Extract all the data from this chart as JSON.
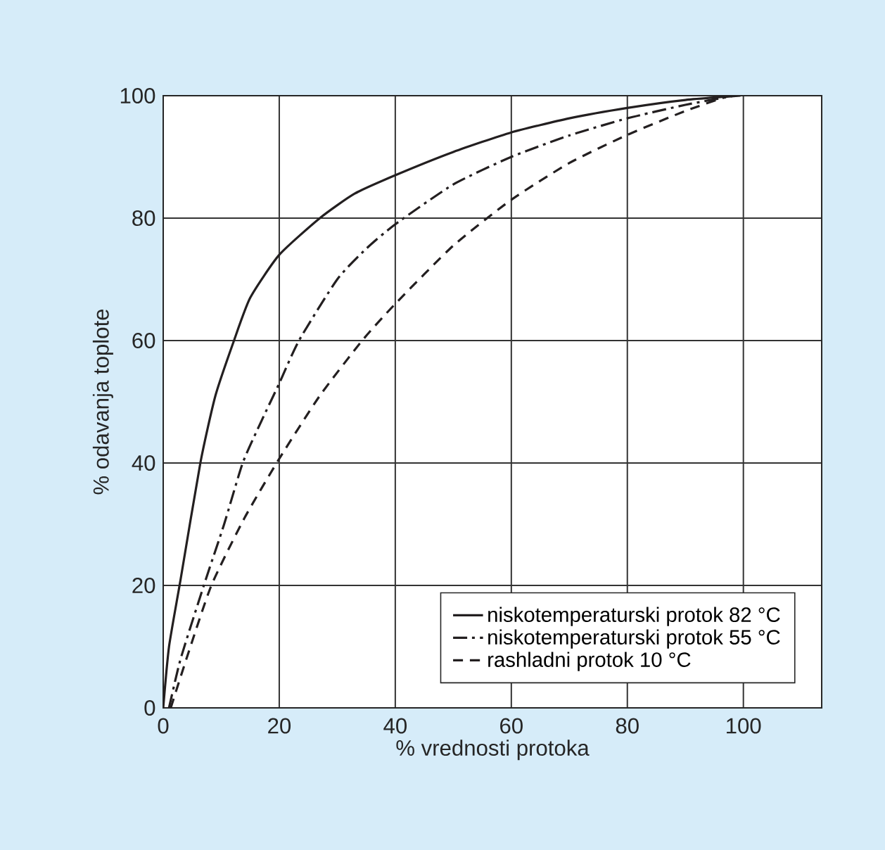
{
  "chart_data": {
    "type": "line",
    "xlabel": "% vrednosti protoka",
    "ylabel": "% odavanja toplote",
    "xlim": [
      0,
      113.5
    ],
    "ylim": [
      0,
      100
    ],
    "xticks": [
      0,
      20,
      40,
      60,
      80,
      100
    ],
    "yticks": [
      0,
      20,
      40,
      60,
      80,
      100
    ],
    "grid": true,
    "legend": "bottom right",
    "series": [
      {
        "name": "niskotemperaturski protok 82 °C",
        "color": "#231f20",
        "line_style": "solid",
        "x": [
          0,
          1,
          3,
          6.4,
          9,
          12.2,
          15,
          20,
          27,
          33,
          40,
          50,
          60,
          70,
          80,
          90,
          99.5
        ],
        "values": [
          0,
          10,
          21,
          40,
          51,
          60,
          67,
          74,
          80,
          84,
          87,
          90.8,
          94,
          96.3,
          98,
          99.3,
          100
        ]
      },
      {
        "name": "niskotemperaturski protok 55 °C",
        "color": "#231f20",
        "line_style": "dashdot",
        "x": [
          1,
          3,
          7,
          10.5,
          13.7,
          17,
          20,
          23.4,
          30,
          35,
          40,
          50,
          60,
          70,
          80,
          90,
          98.5
        ],
        "values": [
          0,
          8,
          20,
          30,
          40,
          47,
          53,
          60,
          70,
          75,
          79,
          85.5,
          90,
          93.5,
          96.3,
          98.5,
          100
        ]
      },
      {
        "name": "rashladni protok 10 °C",
        "color": "#231f20",
        "line_style": "dashed",
        "x": [
          1.3,
          4,
          8.3,
          14,
          20,
          27,
          34.3,
          40,
          50,
          60,
          70,
          80,
          90,
          97.5
        ],
        "values": [
          0,
          8,
          20,
          31,
          40.7,
          51,
          60,
          66,
          75.5,
          83,
          89,
          93.6,
          97.5,
          100
        ]
      }
    ]
  }
}
